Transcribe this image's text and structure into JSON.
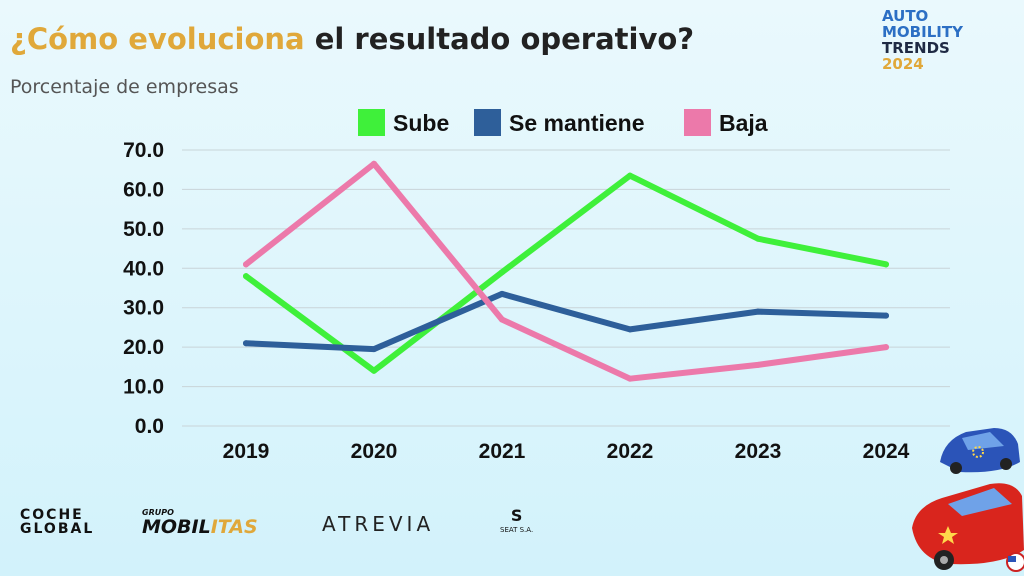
{
  "header": {
    "title_highlight": "¿Cómo evoluciona",
    "title_rest": " el resultado operativo?",
    "subtitle": "Porcentaje de empresas"
  },
  "brand": {
    "line1": "AUTO",
    "line2": "MOBILITY",
    "line3": "TRENDS",
    "line4": "2024"
  },
  "logos": {
    "coche_line1": "COCHE",
    "coche_line2": "GLOBAL",
    "mobil_pre": "GRUPO",
    "mobil_main": "MOBIL",
    "mobil_accent": "ITAS",
    "atrevia": "ATREVIA",
    "seat_mark": "S",
    "seat_sub": "SEAT S.A."
  },
  "colors": {
    "accent": "#e0a83a",
    "sube": "#3ff03a",
    "se_mantiene": "#2e5f9a",
    "baja": "#ec79aa",
    "background": "#dff5fb"
  },
  "chart_data": {
    "type": "line",
    "categories": [
      "2019",
      "2020",
      "2021",
      "2022",
      "2023",
      "2024"
    ],
    "series": [
      {
        "name": "Sube",
        "color": "#3ff03a",
        "values": [
          38.0,
          14.0,
          39.0,
          63.5,
          47.5,
          41.0
        ]
      },
      {
        "name": "Se mantiene",
        "color": "#2e5f9a",
        "values": [
          21.0,
          19.5,
          33.5,
          24.5,
          29.0,
          28.0
        ]
      },
      {
        "name": "Baja",
        "color": "#ec79aa",
        "values": [
          41.0,
          66.5,
          27.0,
          12.0,
          15.5,
          20.0
        ]
      }
    ],
    "ylim": [
      0,
      70
    ],
    "yticks": [
      "0.0",
      "10.0",
      "20.0",
      "30.0",
      "40.0",
      "50.0",
      "60.0",
      "70.0"
    ],
    "grid": true,
    "legend": "top"
  }
}
